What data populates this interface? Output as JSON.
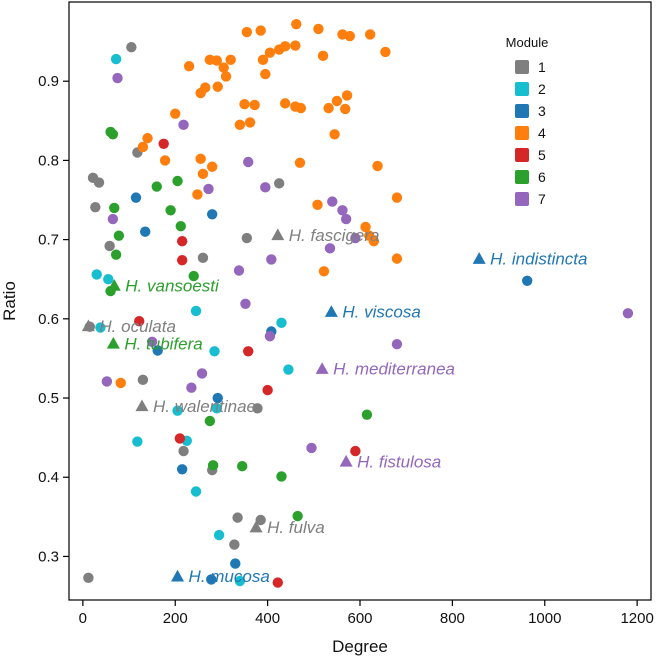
{
  "chart_data": {
    "type": "scatter",
    "xlabel": "Degree",
    "ylabel": "Ratio",
    "xlim": [
      -30,
      1230
    ],
    "ylim": [
      0.245,
      1.0
    ],
    "xticks": [
      0,
      200,
      400,
      600,
      800,
      1000,
      1200
    ],
    "yticks": [
      0.3,
      0.4,
      0.5,
      0.6,
      0.7,
      0.8,
      0.9
    ],
    "tick_labels_x": [
      "0",
      "200",
      "400",
      "600",
      "800",
      "1000",
      "1200"
    ],
    "tick_labels_y": [
      "0.3",
      "0.4",
      "0.5",
      "0.6",
      "0.7",
      "0.8",
      "0.9"
    ],
    "legend": {
      "title": "Module",
      "position": "top-right",
      "entries": [
        {
          "module": "1",
          "label": "1",
          "color": "#7f7f7f"
        },
        {
          "module": "2",
          "label": "2",
          "color": "#17becf"
        },
        {
          "module": "3",
          "label": "3",
          "color": "#1f77b4"
        },
        {
          "module": "4",
          "label": "4",
          "color": "#ff7f0e"
        },
        {
          "module": "5",
          "label": "5",
          "color": "#d62728"
        },
        {
          "module": "6",
          "label": "6",
          "color": "#2ca02c"
        },
        {
          "module": "7",
          "label": "7",
          "color": "#9467bd"
        }
      ]
    },
    "series": [
      {
        "name": "1",
        "points": [
          [
            105,
            0.943
          ],
          [
            22,
            0.778
          ],
          [
            35,
            0.772
          ],
          [
            118,
            0.81
          ],
          [
            27,
            0.741
          ],
          [
            58,
            0.692
          ],
          [
            15,
            0.59
          ],
          [
            130,
            0.523
          ],
          [
            218,
            0.433
          ],
          [
            260,
            0.677
          ],
          [
            355,
            0.702
          ],
          [
            425,
            0.771
          ],
          [
            378,
            0.487
          ],
          [
            12,
            0.273
          ],
          [
            328,
            0.315
          ],
          [
            335,
            0.349
          ],
          [
            385,
            0.346
          ],
          [
            280,
            0.409
          ]
        ]
      },
      {
        "name": "2",
        "points": [
          [
            72,
            0.928
          ],
          [
            30,
            0.656
          ],
          [
            55,
            0.65
          ],
          [
            38,
            0.589
          ],
          [
            245,
            0.61
          ],
          [
            430,
            0.595
          ],
          [
            285,
            0.559
          ],
          [
            445,
            0.536
          ],
          [
            205,
            0.484
          ],
          [
            290,
            0.487
          ],
          [
            118,
            0.445
          ],
          [
            225,
            0.446
          ],
          [
            245,
            0.382
          ],
          [
            295,
            0.327
          ],
          [
            340,
            0.269
          ]
        ]
      },
      {
        "name": "3",
        "points": [
          [
            115,
            0.753
          ],
          [
            135,
            0.71
          ],
          [
            162,
            0.56
          ],
          [
            280,
            0.732
          ],
          [
            408,
            0.584
          ],
          [
            292,
            0.5
          ],
          [
            215,
            0.41
          ],
          [
            330,
            0.291
          ],
          [
            278,
            0.271
          ],
          [
            962,
            0.648
          ]
        ]
      },
      {
        "name": "4",
        "points": [
          [
            355,
            0.962
          ],
          [
            385,
            0.964
          ],
          [
            462,
            0.972
          ],
          [
            510,
            0.966
          ],
          [
            562,
            0.959
          ],
          [
            578,
            0.957
          ],
          [
            622,
            0.959
          ],
          [
            655,
            0.937
          ],
          [
            230,
            0.919
          ],
          [
            275,
            0.927
          ],
          [
            290,
            0.926
          ],
          [
            305,
            0.917
          ],
          [
            320,
            0.927
          ],
          [
            390,
            0.927
          ],
          [
            405,
            0.936
          ],
          [
            425,
            0.94
          ],
          [
            438,
            0.944
          ],
          [
            460,
            0.945
          ],
          [
            520,
            0.932
          ],
          [
            310,
            0.906
          ],
          [
            395,
            0.909
          ],
          [
            255,
            0.885
          ],
          [
            265,
            0.892
          ],
          [
            292,
            0.893
          ],
          [
            350,
            0.871
          ],
          [
            372,
            0.87
          ],
          [
            438,
            0.872
          ],
          [
            460,
            0.868
          ],
          [
            472,
            0.866
          ],
          [
            532,
            0.866
          ],
          [
            550,
            0.875
          ],
          [
            568,
            0.865
          ],
          [
            572,
            0.882
          ],
          [
            200,
            0.859
          ],
          [
            340,
            0.845
          ],
          [
            362,
            0.848
          ],
          [
            545,
            0.833
          ],
          [
            140,
            0.828
          ],
          [
            130,
            0.817
          ],
          [
            178,
            0.8
          ],
          [
            255,
            0.802
          ],
          [
            260,
            0.783
          ],
          [
            280,
            0.792
          ],
          [
            470,
            0.797
          ],
          [
            638,
            0.793
          ],
          [
            680,
            0.753
          ],
          [
            508,
            0.744
          ],
          [
            612,
            0.716
          ],
          [
            620,
            0.705
          ],
          [
            630,
            0.698
          ],
          [
            680,
            0.676
          ],
          [
            522,
            0.66
          ],
          [
            82,
            0.519
          ],
          [
            248,
            0.757
          ]
        ]
      },
      {
        "name": "5",
        "points": [
          [
            175,
            0.821
          ],
          [
            215,
            0.698
          ],
          [
            215,
            0.674
          ],
          [
            122,
            0.597
          ],
          [
            210,
            0.449
          ],
          [
            358,
            0.559
          ],
          [
            400,
            0.51
          ],
          [
            590,
            0.433
          ],
          [
            422,
            0.267
          ]
        ]
      },
      {
        "name": "6",
        "points": [
          [
            60,
            0.836
          ],
          [
            65,
            0.833
          ],
          [
            68,
            0.74
          ],
          [
            78,
            0.705
          ],
          [
            72,
            0.681
          ],
          [
            60,
            0.635
          ],
          [
            160,
            0.767
          ],
          [
            190,
            0.737
          ],
          [
            205,
            0.774
          ],
          [
            212,
            0.717
          ],
          [
            240,
            0.654
          ],
          [
            275,
            0.471
          ],
          [
            282,
            0.415
          ],
          [
            345,
            0.414
          ],
          [
            430,
            0.401
          ],
          [
            465,
            0.351
          ],
          [
            615,
            0.479
          ]
        ]
      },
      {
        "name": "7",
        "points": [
          [
            75,
            0.904
          ],
          [
            218,
            0.845
          ],
          [
            358,
            0.798
          ],
          [
            395,
            0.766
          ],
          [
            272,
            0.764
          ],
          [
            540,
            0.748
          ],
          [
            562,
            0.737
          ],
          [
            570,
            0.726
          ],
          [
            65,
            0.726
          ],
          [
            535,
            0.689
          ],
          [
            590,
            0.702
          ],
          [
            408,
            0.675
          ],
          [
            338,
            0.661
          ],
          [
            352,
            0.619
          ],
          [
            405,
            0.578
          ],
          [
            150,
            0.571
          ],
          [
            258,
            0.531
          ],
          [
            235,
            0.513
          ],
          [
            52,
            0.521
          ],
          [
            495,
            0.437
          ],
          [
            680,
            0.568
          ],
          [
            1180,
            0.607
          ]
        ]
      }
    ],
    "species": [
      {
        "name": "H. fascigera",
        "module": "1",
        "x": 422,
        "y": 0.706
      },
      {
        "name": "H. indistincta",
        "module": "3",
        "x": 858,
        "y": 0.676
      },
      {
        "name": "H. vansoesti",
        "module": "6",
        "x": 68,
        "y": 0.642
      },
      {
        "name": "H. viscosa",
        "module": "3",
        "x": 538,
        "y": 0.609
      },
      {
        "name": "H. oculata",
        "module": "1",
        "x": 12,
        "y": 0.591
      },
      {
        "name": "H. tubifera",
        "module": "6",
        "x": 66,
        "y": 0.569
      },
      {
        "name": "H. mediterranea",
        "module": "7",
        "x": 518,
        "y": 0.537
      },
      {
        "name": "H. walentinae",
        "module": "1",
        "x": 128,
        "y": 0.49
      },
      {
        "name": "H. fistulosa",
        "module": "7",
        "x": 570,
        "y": 0.42
      },
      {
        "name": "H. fulva",
        "module": "1",
        "x": 375,
        "y": 0.337
      },
      {
        "name": "H. mucosa",
        "module": "3",
        "x": 205,
        "y": 0.275
      }
    ]
  }
}
